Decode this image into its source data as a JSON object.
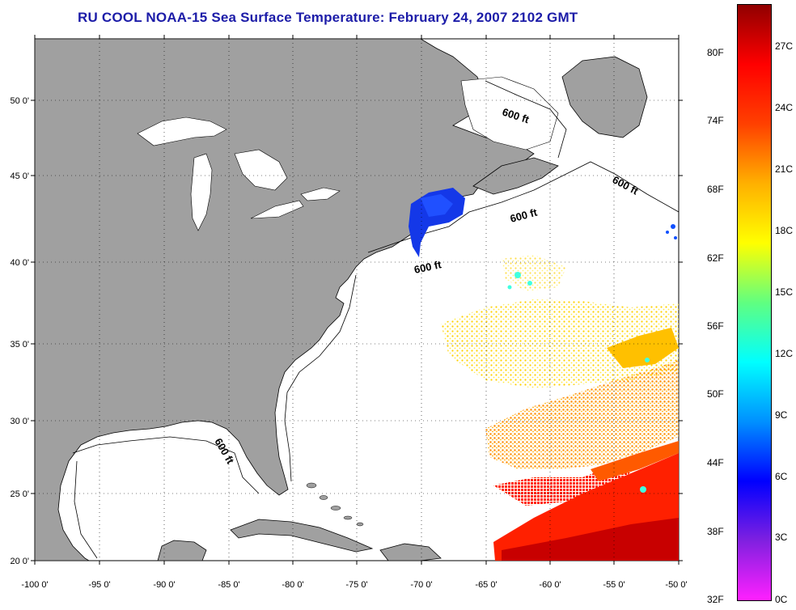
{
  "title": "RU COOL  NOAA-15  Sea Surface Temperature:  February 24, 2007 2102 GMT",
  "map": {
    "x_ticks": [
      "-100 0'",
      "-95 0'",
      "-90 0'",
      "-85 0'",
      "-80 0'",
      "-75 0'",
      "-70 0'",
      "-65 0'",
      "-60 0'",
      "-55 0'",
      "-50 0'"
    ],
    "y_ticks": [
      "50 0'",
      "45 0'",
      "40 0'",
      "35 0'",
      "30 0'",
      "25 0'",
      "20 0'"
    ],
    "annotations": [
      "600 ft",
      "600 ft",
      "600 ft",
      "600 ft",
      "600 ft"
    ],
    "land_color": "#a0a0a0",
    "water_color": "#ffffff"
  },
  "colorbar": {
    "fahrenheit_labels": [
      "80F",
      "74F",
      "68F",
      "62F",
      "56F",
      "50F",
      "44F",
      "38F",
      "32F"
    ],
    "celsius_labels": [
      "27C",
      "24C",
      "21C",
      "18C",
      "15C",
      "12C",
      "9C",
      "6C",
      "3C",
      "0C"
    ],
    "colors": [
      "#ff20ff",
      "#8020e0",
      "#0000ff",
      "#0090ff",
      "#00ffff",
      "#60ff80",
      "#ffff00",
      "#ffb000",
      "#ff4000",
      "#ff0000",
      "#900000"
    ]
  }
}
